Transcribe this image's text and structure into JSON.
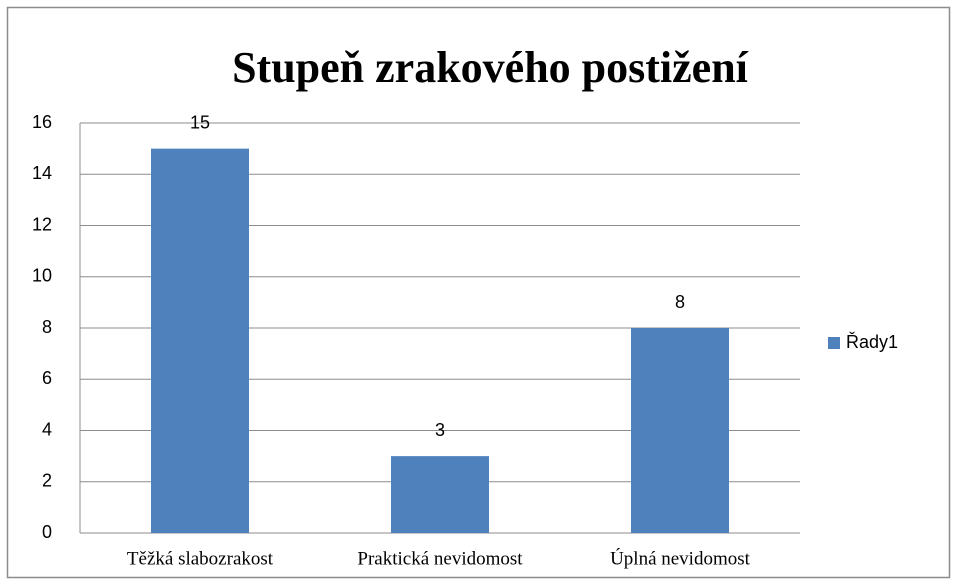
{
  "chart_data": {
    "type": "bar",
    "title": "Stupeň zrakového postižení",
    "categories": [
      "Těžká slabozrakost",
      "Praktická nevidomost",
      "Úplná nevidomost"
    ],
    "series": [
      {
        "name": "Řady1",
        "color": "#4f81bd",
        "values": [
          15,
          3,
          8
        ]
      }
    ],
    "ylim": [
      0,
      16
    ],
    "yticks": [
      0,
      2,
      4,
      6,
      8,
      10,
      12,
      14,
      16
    ],
    "grid": true,
    "legend": "right"
  }
}
